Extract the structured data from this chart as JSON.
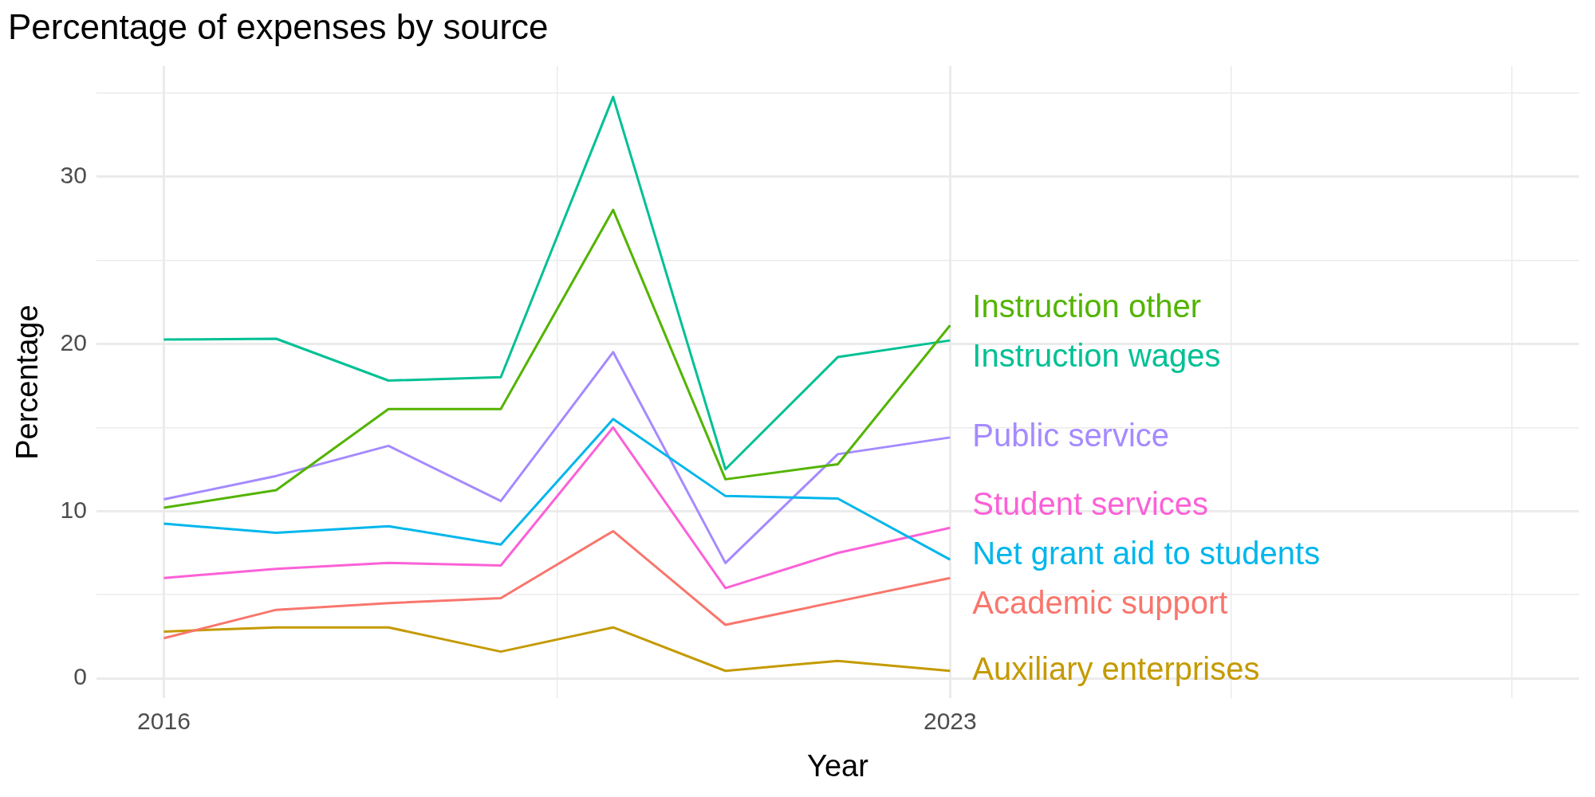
{
  "chart_data": {
    "type": "line",
    "title": "Percentage of expenses by source",
    "xlabel": "Year",
    "ylabel": "Percentage",
    "x": [
      2016,
      2017,
      2018,
      2019,
      2020,
      2021,
      2022,
      2023
    ],
    "series": [
      {
        "name": "Academic support",
        "color": "#f8766d",
        "values": [
          2.4,
          4.1,
          4.5,
          4.8,
          8.8,
          3.2,
          4.6,
          6.0
        ]
      },
      {
        "name": "Auxiliary enterprises",
        "color": "#c49a00",
        "values": [
          2.8,
          3.05,
          3.05,
          1.6,
          3.05,
          0.45,
          1.05,
          0.45
        ]
      },
      {
        "name": "Instruction other",
        "color": "#53b400",
        "values": [
          10.2,
          11.25,
          16.1,
          16.1,
          28.0,
          11.9,
          12.8,
          21.1
        ]
      },
      {
        "name": "Instruction wages",
        "color": "#00c094",
        "values": [
          20.25,
          20.3,
          17.8,
          18.0,
          34.75,
          12.5,
          19.2,
          20.2
        ]
      },
      {
        "name": "Net grant aid to students",
        "color": "#00b6eb",
        "values": [
          9.25,
          8.7,
          9.1,
          8.0,
          15.5,
          10.9,
          10.75,
          7.1
        ]
      },
      {
        "name": "Public service",
        "color": "#a58aff",
        "values": [
          10.7,
          12.1,
          13.9,
          10.6,
          19.5,
          6.9,
          13.4,
          14.4
        ]
      },
      {
        "name": "Student services",
        "color": "#fb61d7",
        "values": [
          6.0,
          6.55,
          6.9,
          6.75,
          15.0,
          5.4,
          7.5,
          9.0
        ]
      }
    ],
    "xlim": [
      2015.4,
      2028.6
    ],
    "xticks": [
      2016,
      {
        "value": 2019.5,
        "label": null
      },
      2023,
      {
        "value": 2025.5,
        "label": null
      },
      {
        "value": 2028,
        "label": null
      }
    ],
    "ylim": [
      -1.2,
      36.6
    ],
    "yticks": [
      0,
      {
        "value": 5,
        "label": null
      },
      10,
      {
        "value": 15,
        "label": null
      },
      20,
      {
        "value": 25,
        "label": null
      },
      30,
      {
        "value": 35,
        "label": null
      }
    ],
    "grid": true,
    "legend": false,
    "marker": "none",
    "line_style": "solid"
  }
}
